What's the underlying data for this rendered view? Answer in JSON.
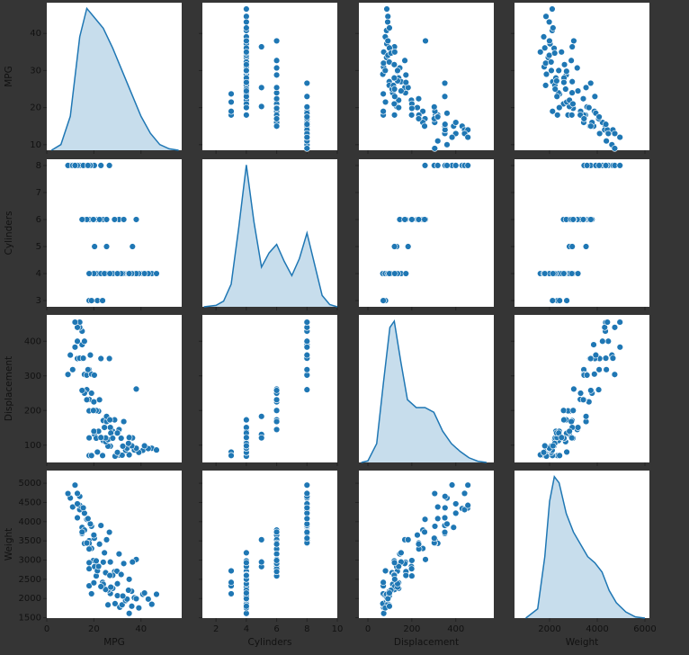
{
  "chart_data": {
    "type": "pairplot",
    "color": "#1f77b4",
    "series": [
      {
        "name": "MPG",
        "values": [
          18,
          15,
          18,
          16,
          17,
          15,
          14,
          14,
          14,
          15,
          10,
          9,
          11,
          13,
          12,
          13,
          16,
          19,
          17,
          23,
          26.6,
          20.2,
          14,
          13,
          12,
          15.5,
          18.5,
          17.5,
          22,
          18,
          21,
          19,
          16,
          18,
          20,
          24,
          25.4,
          17,
          30.7,
          28.8,
          32.7,
          38,
          19.8,
          15,
          22.4,
          20.3,
          25.4,
          36.4,
          18,
          21.5,
          23.7,
          19,
          24,
          27,
          26,
          25,
          28,
          31,
          35,
          32,
          29,
          30,
          27,
          26,
          33.5,
          36,
          37.2,
          44.6,
          46.6,
          40.8,
          43.1,
          39.1,
          34.1,
          32.3,
          29.8,
          25,
          22,
          21,
          23,
          20,
          18,
          24.5,
          27.2,
          31.6,
          28,
          30,
          38,
          36.1,
          34.7,
          41.5,
          35,
          26.8
        ],
        "xlim": [
          0,
          57.3
        ],
        "xticks": [
          0,
          20,
          40
        ],
        "ylim": [
          8.5,
          48.3
        ],
        "yticks": [
          10,
          20,
          30,
          40
        ],
        "kde": {
          "x": [
            2,
            6,
            10,
            14,
            17,
            20,
            24,
            28,
            32,
            36,
            40,
            44,
            48,
            52,
            56
          ],
          "density": [
            0,
            0.002,
            0.012,
            0.04,
            0.05,
            0.047,
            0.043,
            0.036,
            0.028,
            0.02,
            0.012,
            0.006,
            0.002,
            0.0005,
            0
          ],
          "ylim": [
            0,
            0.052
          ]
        }
      },
      {
        "name": "Cylinders",
        "values": [
          8,
          8,
          8,
          8,
          8,
          8,
          8,
          8,
          8,
          8,
          8,
          8,
          8,
          8,
          8,
          8,
          8,
          8,
          8,
          8,
          8,
          8,
          8,
          8,
          8,
          8,
          8,
          8,
          6,
          6,
          6,
          6,
          6,
          6,
          6,
          6,
          6,
          6,
          6,
          6,
          6,
          6,
          6,
          6,
          6,
          5,
          5,
          5,
          3,
          3,
          3,
          3,
          4,
          4,
          4,
          4,
          4,
          4,
          4,
          4,
          4,
          4,
          4,
          4,
          4,
          4,
          4,
          4,
          4,
          4,
          4,
          4,
          4,
          4,
          4,
          4,
          4,
          4,
          4,
          4,
          4,
          4,
          4,
          4,
          4,
          4,
          4,
          4,
          4,
          4,
          4,
          4
        ],
        "xlim": [
          1.1,
          10
        ],
        "xticks": [
          2,
          4,
          6,
          8,
          10
        ],
        "ylim": [
          2.77,
          8.23
        ],
        "yticks": [
          3,
          4,
          5,
          6,
          7,
          8
        ],
        "kde": {
          "x": [
            1.2,
            2,
            2.5,
            3,
            3.5,
            4,
            4.5,
            5,
            5.5,
            6,
            6.5,
            7,
            7.5,
            8,
            8.5,
            9,
            9.5,
            10
          ],
          "density": [
            0,
            0.005,
            0.02,
            0.08,
            0.28,
            0.5,
            0.3,
            0.14,
            0.19,
            0.22,
            0.16,
            0.11,
            0.17,
            0.26,
            0.15,
            0.04,
            0.008,
            0
          ],
          "ylim": [
            0,
            0.52
          ]
        }
      },
      {
        "name": "Displacement",
        "values": [
          307,
          350,
          318,
          304,
          302,
          429,
          454,
          440,
          455,
          390,
          360,
          304,
          318,
          400,
          383,
          350,
          400,
          305,
          260,
          350,
          350,
          302,
          351,
          440,
          455,
          351,
          360,
          318,
          198,
          199,
          200,
          250,
          250,
          232,
          225,
          171,
          168,
          231,
          145,
          173,
          168,
          262,
          200,
          258,
          231,
          131,
          183,
          121,
          70,
          80,
          70,
          70,
          113,
          97,
          97,
          110,
          140,
          71,
          72,
          71,
          68,
          79,
          151,
          116,
          85,
          98,
          86,
          91,
          86,
          85,
          90,
          79,
          91,
          97,
          134,
          121,
          140,
          120,
          122,
          140,
          121,
          151,
          135,
          120,
          120,
          135,
          91,
          98,
          105,
          98,
          122,
          173
        ],
        "xlim": [
          -41,
          573
        ],
        "xticks": [
          0,
          200,
          400
        ],
        "ylim": [
          50,
          476
        ],
        "yticks": [
          100,
          200,
          300,
          400
        ],
        "kde": {
          "x": [
            -30,
            0,
            40,
            70,
            100,
            120,
            150,
            180,
            220,
            260,
            300,
            340,
            380,
            420,
            460,
            500,
            540
          ],
          "density": [
            0,
            5e-05,
            0.0006,
            0.0025,
            0.0043,
            0.0045,
            0.0032,
            0.002,
            0.00175,
            0.00175,
            0.0016,
            0.001,
            0.0006,
            0.00035,
            0.00015,
            4e-05,
            0
          ],
          "ylim": [
            0,
            0.0047
          ]
        }
      },
      {
        "name": "Weight",
        "values": [
          3504,
          3693,
          3436,
          3433,
          3449,
          4341,
          4354,
          4312,
          4425,
          3850,
          4615,
          4732,
          4382,
          4464,
          4955,
          4100,
          4220,
          3880,
          4060,
          3900,
          3725,
          3570,
          4657,
          4735,
          4951,
          4360,
          3940,
          4080,
          2833,
          2774,
          2587,
          3302,
          3781,
          3288,
          3651,
          2945,
          3530,
          3445,
          3160,
          2700,
          2910,
          3015,
          2990,
          3730,
          3415,
          2830,
          3530,
          2950,
          2330,
          2720,
          2420,
          2124,
          2372,
          2130,
          1835,
          2672,
          2264,
          1773,
          1613,
          1836,
          1867,
          2074,
          2950,
          2220,
          1945,
          2190,
          2019,
          1850,
          2110,
          2110,
          1985,
          1755,
          1985,
          2065,
          2711,
          2234,
          2835,
          2979,
          2310,
          2408,
          2933,
          3190,
          2295,
          2625,
          2605,
          2385,
          1995,
          1800,
          2215,
          2144,
          2500,
          2600
        ],
        "xlim": [
          528,
          6189
        ],
        "xticks": [
          2000,
          4000,
          6000
        ],
        "ylim": [
          1490,
          5330
        ],
        "yticks": [
          1500,
          2000,
          2500,
          3000,
          3500,
          4000,
          4500,
          5000
        ],
        "kde": {
          "x": [
            1000,
            1500,
            1800,
            2000,
            2200,
            2400,
            2700,
            3000,
            3300,
            3600,
            3900,
            4200,
            4500,
            4800,
            5200,
            5600,
            6000
          ],
          "density": [
            0,
            3e-05,
            0.0002,
            0.00038,
            0.00046,
            0.00044,
            0.00034,
            0.00028,
            0.00024,
            0.0002,
            0.00018,
            0.00015,
            9e-05,
            5e-05,
            2e-05,
            4e-06,
            0
          ],
          "ylim": [
            0,
            0.00048
          ]
        }
      }
    ]
  }
}
